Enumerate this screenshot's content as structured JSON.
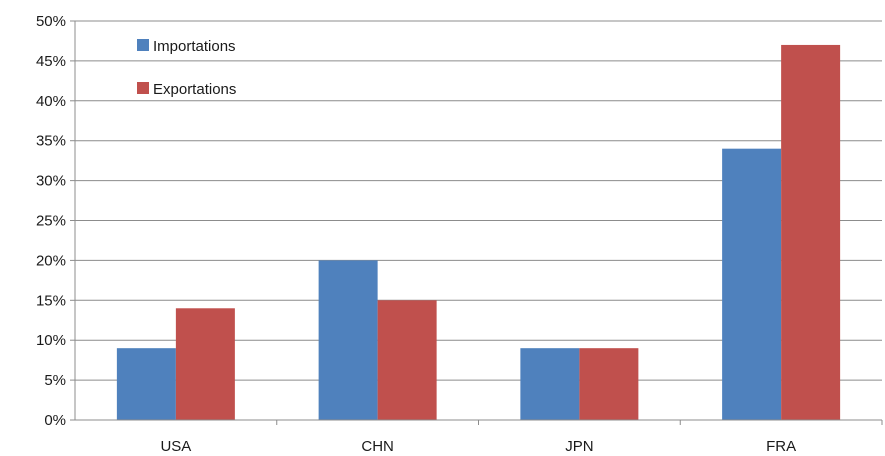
{
  "chart_data": {
    "type": "bar",
    "title": "",
    "xlabel": "",
    "ylabel": "",
    "categories": [
      "USA",
      "CHN",
      "JPN",
      "FRA"
    ],
    "series": [
      {
        "name": "Importations",
        "values": [
          9,
          20,
          9,
          34
        ],
        "color": "#4F81BD"
      },
      {
        "name": "Exportations",
        "values": [
          14,
          15,
          9,
          47
        ],
        "color": "#C0504D"
      }
    ],
    "ylim": [
      0,
      50
    ],
    "yticks": [
      0,
      5,
      10,
      15,
      20,
      25,
      30,
      35,
      40,
      45,
      50
    ],
    "ytick_labels": [
      "0%",
      "5%",
      "10%",
      "15%",
      "20%",
      "25%",
      "30%",
      "35%",
      "40%",
      "45%",
      "50%"
    ],
    "grid": true,
    "legend_position": "top-left"
  }
}
